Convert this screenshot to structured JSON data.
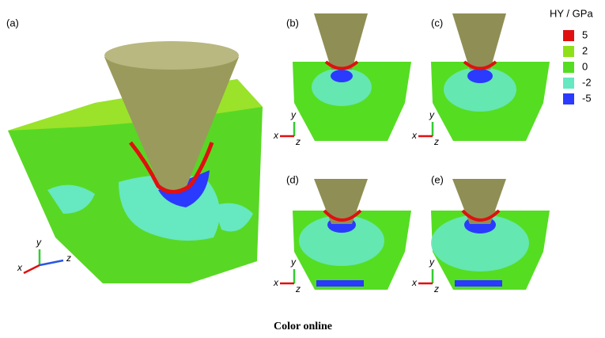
{
  "panels": [
    {
      "label": "(a)"
    },
    {
      "label": "(b)"
    },
    {
      "label": "(c)"
    },
    {
      "label": "(d)"
    },
    {
      "label": "(e)"
    }
  ],
  "legend": {
    "title": "HY / GPa",
    "entries": [
      {
        "value": 5,
        "color": "#e01010"
      },
      {
        "value": 2,
        "color": "#8ee01a"
      },
      {
        "value": 0,
        "color": "#55dd22"
      },
      {
        "value": -2,
        "color": "#66e8c0"
      },
      {
        "value": -5,
        "color": "#2a3aff"
      }
    ]
  },
  "axes": {
    "x": "x",
    "y": "y",
    "z": "z"
  },
  "caption": "Color online"
}
